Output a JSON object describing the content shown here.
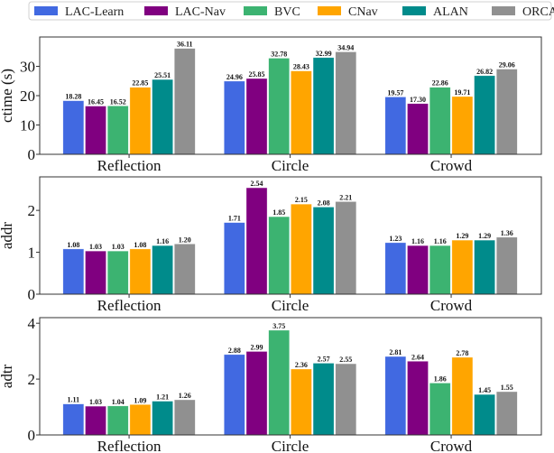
{
  "legend": {
    "placement": "top",
    "entries": [
      "LAC-Learn",
      "LAC-Nav",
      "BVC",
      "CNav",
      "ALAN",
      "ORCA"
    ]
  },
  "colors": [
    "#4169e1",
    "#800080",
    "#3cb371",
    "#ffa500",
    "#008b8b",
    "#909090"
  ],
  "chart_data": [
    {
      "type": "bar",
      "ylabel": "ctime (s)",
      "categories": [
        "Reflection",
        "Circle",
        "Crowd"
      ],
      "ylim": [
        0,
        40
      ],
      "yticks": [
        0,
        10,
        20,
        30
      ],
      "grid": false,
      "series": [
        {
          "name": "LAC-Learn",
          "values": [
            18.28,
            24.96,
            19.57
          ]
        },
        {
          "name": "LAC-Nav",
          "values": [
            16.45,
            25.85,
            17.3
          ]
        },
        {
          "name": "BVC",
          "values": [
            16.52,
            32.78,
            22.86
          ]
        },
        {
          "name": "CNav",
          "values": [
            22.85,
            28.43,
            19.71
          ]
        },
        {
          "name": "ALAN",
          "values": [
            25.51,
            32.99,
            26.82
          ]
        },
        {
          "name": "ORCA",
          "values": [
            36.11,
            34.94,
            29.06
          ]
        }
      ]
    },
    {
      "type": "bar",
      "ylabel": "addr",
      "categories": [
        "Reflection",
        "Circle",
        "Crowd"
      ],
      "ylim": [
        0,
        2.8
      ],
      "yticks": [
        0,
        1,
        2
      ],
      "grid": false,
      "series": [
        {
          "name": "LAC-Learn",
          "values": [
            1.08,
            1.71,
            1.23
          ]
        },
        {
          "name": "LAC-Nav",
          "values": [
            1.03,
            2.54,
            1.16
          ]
        },
        {
          "name": "BVC",
          "values": [
            1.03,
            1.85,
            1.16
          ]
        },
        {
          "name": "CNav",
          "values": [
            1.08,
            2.15,
            1.29
          ]
        },
        {
          "name": "ALAN",
          "values": [
            1.16,
            2.08,
            1.29
          ]
        },
        {
          "name": "ORCA",
          "values": [
            1.2,
            2.21,
            1.36
          ]
        }
      ]
    },
    {
      "type": "bar",
      "ylabel": "adtr",
      "categories": [
        "Reflection",
        "Circle",
        "Crowd"
      ],
      "ylim": [
        0,
        4.2
      ],
      "yticks": [
        0,
        2,
        4
      ],
      "grid": false,
      "series": [
        {
          "name": "LAC-Learn",
          "values": [
            1.11,
            2.88,
            2.81
          ]
        },
        {
          "name": "LAC-Nav",
          "values": [
            1.03,
            2.99,
            2.64
          ]
        },
        {
          "name": "BVC",
          "values": [
            1.04,
            3.75,
            1.86
          ]
        },
        {
          "name": "CNav",
          "values": [
            1.09,
            2.36,
            2.78
          ]
        },
        {
          "name": "ALAN",
          "values": [
            1.21,
            2.57,
            1.45
          ]
        },
        {
          "name": "ORCA",
          "values": [
            1.26,
            2.55,
            1.55
          ]
        }
      ]
    }
  ]
}
